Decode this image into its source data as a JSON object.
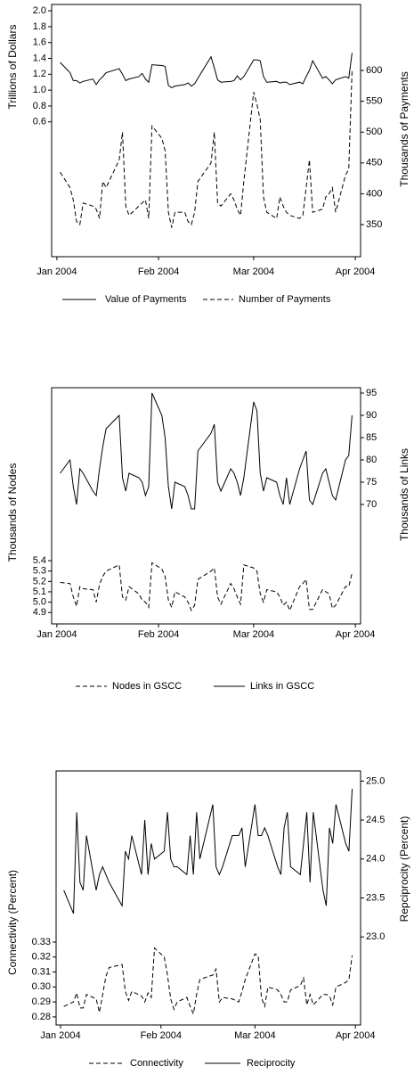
{
  "chart_data": [
    {
      "type": "line",
      "y_label": "Trillions of Dollars",
      "y2_label": "Thousands of Payments",
      "x": [
        2,
        5,
        6,
        7,
        8,
        9,
        12,
        13,
        14,
        15,
        16,
        20,
        21,
        22,
        23,
        26,
        27,
        28,
        29,
        30,
        33,
        34,
        35,
        36,
        37,
        40,
        41,
        42,
        43,
        44,
        48,
        49,
        50,
        51,
        54,
        55,
        56,
        57,
        58,
        61,
        62,
        63,
        64,
        65,
        68,
        69,
        70,
        71,
        72,
        75,
        76,
        77,
        78,
        79,
        82,
        83,
        84,
        85,
        86,
        89,
        90,
        91
      ],
      "xlim": [
        -0.6,
        93.6
      ],
      "xticks": [
        {
          "value": 1,
          "label": "Jan 2004"
        },
        {
          "value": 32,
          "label": "Feb 2004"
        },
        {
          "value": 61,
          "label": "Mar 2004"
        },
        {
          "value": 92,
          "label": "Apr 2004"
        }
      ],
      "ylim": [
        -1.1,
        2.08
      ],
      "yticks": [
        0.6,
        0.8,
        {
          "value": 1,
          "label": "1.0"
        },
        1.2,
        1.4,
        1.6,
        1.8,
        {
          "value": 2,
          "label": "2.0"
        }
      ],
      "y2lim": [
        298,
        707
      ],
      "y2ticks": [
        350,
        400,
        450,
        500,
        550,
        600
      ],
      "series": [
        {
          "name": "Value of Payments",
          "color": "#000000",
          "linestyle": "solid",
          "values": [
            1.35,
            1.22,
            1.12,
            1.12,
            1.09,
            1.11,
            1.14,
            1.07,
            1.13,
            1.17,
            1.22,
            1.27,
            1.2,
            1.12,
            1.14,
            1.17,
            1.21,
            1.14,
            1.1,
            1.32,
            1.31,
            1.3,
            1.06,
            1.03,
            1.05,
            1.07,
            1.09,
            1.05,
            1.08,
            1.15,
            1.42,
            1.28,
            1.13,
            1.1,
            1.11,
            1.12,
            1.18,
            1.13,
            1.17,
            1.38,
            1.38,
            1.37,
            1.17,
            1.1,
            1.11,
            1.09,
            1.1,
            1.1,
            1.07,
            1.1,
            1.08,
            1.17,
            1.25,
            1.37,
            1.15,
            1.17,
            1.13,
            1.08,
            1.13,
            1.17,
            1.15,
            1.47
          ]
        },
        {
          "name": "Number of Payments",
          "color": "#000000",
          "linestyle": "dashed",
          "axis": "y2",
          "values": [
            435,
            410,
            390,
            355,
            350,
            385,
            380,
            375,
            360,
            420,
            410,
            455,
            500,
            380,
            365,
            380,
            385,
            390,
            360,
            510,
            490,
            470,
            370,
            345,
            370,
            370,
            355,
            350,
            370,
            420,
            450,
            500,
            385,
            380,
            400,
            390,
            375,
            365,
            420,
            565,
            545,
            520,
            395,
            370,
            360,
            395,
            380,
            370,
            365,
            360,
            365,
            410,
            455,
            370,
            375,
            395,
            400,
            410,
            370,
            430,
            440,
            600
          ]
        }
      ]
    },
    {
      "type": "line",
      "y_label": "Thousands of Nodes",
      "y2_label": "Thousands of Links",
      "x": [
        2,
        5,
        6,
        7,
        8,
        9,
        12,
        13,
        14,
        15,
        16,
        20,
        21,
        22,
        23,
        26,
        27,
        28,
        29,
        30,
        33,
        34,
        35,
        36,
        37,
        40,
        41,
        42,
        43,
        44,
        48,
        49,
        50,
        51,
        54,
        55,
        56,
        57,
        58,
        61,
        62,
        63,
        64,
        65,
        68,
        69,
        70,
        71,
        72,
        75,
        76,
        77,
        78,
        79,
        82,
        83,
        84,
        85,
        86,
        89,
        90,
        91
      ],
      "xlim": [
        -0.6,
        93.6
      ],
      "xticks": [
        {
          "value": 1,
          "label": "Jan 2004"
        },
        {
          "value": 32,
          "label": "Feb 2004"
        },
        {
          "value": 61,
          "label": "Mar 2004"
        },
        {
          "value": 92,
          "label": "Apr 2004"
        }
      ],
      "ylim": [
        4.79,
        7.07
      ],
      "yticks": [
        4.9,
        {
          "value": 5,
          "label": "5.0"
        },
        5.1,
        5.2,
        5.3,
        5.4
      ],
      "y2lim": [
        43.2,
        96.2
      ],
      "y2ticks": [
        70,
        75,
        80,
        85,
        90,
        95
      ],
      "series": [
        {
          "name": "Nodes in GSCC",
          "color": "#000000",
          "linestyle": "dashed",
          "values": [
            5.19,
            5.18,
            5.05,
            4.96,
            5.15,
            5.13,
            5.12,
            5.0,
            5.17,
            5.25,
            5.3,
            5.36,
            5.05,
            5.02,
            5.15,
            5.08,
            5.02,
            5.0,
            4.95,
            5.38,
            5.32,
            5.25,
            5.02,
            4.95,
            5.1,
            5.05,
            5.0,
            4.92,
            4.97,
            5.22,
            5.3,
            5.33,
            5.05,
            4.98,
            5.18,
            5.13,
            5.05,
            4.98,
            5.36,
            5.33,
            5.3,
            5.08,
            5.0,
            5.12,
            5.1,
            5.05,
            4.97,
            5.0,
            4.92,
            5.15,
            5.18,
            5.22,
            4.93,
            4.93,
            5.12,
            5.1,
            5.08,
            4.94,
            4.97,
            5.15,
            5.15,
            5.28
          ]
        },
        {
          "name": "Links in GSCC",
          "color": "#000000",
          "linestyle": "solid",
          "axis": "y2",
          "values": [
            77,
            80,
            74,
            70,
            78,
            77,
            73,
            72,
            78,
            83,
            87,
            90,
            76,
            73,
            77,
            76,
            75,
            72,
            74,
            95,
            90,
            85,
            74,
            69,
            75,
            74,
            72,
            69,
            69,
            82,
            86,
            88,
            75,
            73,
            78,
            77,
            75,
            72,
            76,
            93,
            91,
            77,
            73,
            76,
            75,
            72,
            70,
            76,
            70,
            78,
            80,
            82,
            71,
            70,
            77,
            78,
            75,
            72,
            71,
            80,
            81,
            90
          ]
        }
      ]
    },
    {
      "type": "line",
      "y_label": "Connectivity (Percent)",
      "y2_label": "Repciprocity (Percent)",
      "x": [
        2,
        5,
        6,
        7,
        8,
        9,
        12,
        13,
        14,
        15,
        16,
        20,
        21,
        22,
        23,
        26,
        27,
        28,
        29,
        30,
        33,
        34,
        35,
        36,
        37,
        40,
        41,
        42,
        43,
        44,
        48,
        49,
        50,
        51,
        54,
        55,
        56,
        57,
        58,
        61,
        62,
        63,
        64,
        65,
        68,
        69,
        70,
        71,
        72,
        75,
        76,
        77,
        78,
        79,
        82,
        83,
        84,
        85,
        86,
        89,
        90,
        91
      ],
      "xlim": [
        -0.37,
        93.6
      ],
      "xticks": [
        {
          "value": 1,
          "label": "Jan 2004"
        },
        {
          "value": 32,
          "label": "Feb 2004"
        },
        {
          "value": 61,
          "label": "Mar 2004"
        },
        {
          "value": 92,
          "label": "Apr 2004"
        }
      ],
      "ylim": [
        0.2746,
        0.4443
      ],
      "yticks": [
        0.28,
        0.29,
        {
          "value": 0.3,
          "label": "0.30"
        },
        0.31,
        0.32,
        0.33
      ],
      "y2lim": [
        21.87,
        25.13
      ],
      "y2ticks": [
        {
          "value": 23,
          "label": "23.0"
        },
        23.5,
        {
          "value": 24,
          "label": "24.0"
        },
        24.5,
        {
          "value": 25,
          "label": "25.0"
        }
      ],
      "series": [
        {
          "name": "Connectivity",
          "color": "#000000",
          "linestyle": "dashed",
          "values": [
            0.287,
            0.29,
            0.296,
            0.286,
            0.286,
            0.295,
            0.292,
            0.283,
            0.295,
            0.307,
            0.313,
            0.315,
            0.297,
            0.291,
            0.297,
            0.294,
            0.29,
            0.296,
            0.293,
            0.326,
            0.32,
            0.308,
            0.292,
            0.285,
            0.29,
            0.293,
            0.287,
            0.282,
            0.295,
            0.305,
            0.308,
            0.312,
            0.29,
            0.293,
            0.292,
            0.291,
            0.29,
            0.297,
            0.305,
            0.322,
            0.321,
            0.293,
            0.287,
            0.3,
            0.298,
            0.295,
            0.29,
            0.29,
            0.298,
            0.301,
            0.306,
            0.288,
            0.295,
            0.288,
            0.295,
            0.295,
            0.294,
            0.288,
            0.3,
            0.303,
            0.305,
            0.321
          ]
        },
        {
          "name": "Reciprocity",
          "color": "#000000",
          "linestyle": "solid",
          "axis": "y2",
          "values": [
            23.6,
            23.3,
            24.6,
            23.7,
            23.6,
            24.3,
            23.6,
            23.8,
            23.9,
            23.8,
            23.7,
            23.4,
            24.1,
            24.0,
            24.3,
            23.8,
            24.5,
            23.8,
            24.2,
            24.0,
            24.1,
            24.6,
            24.0,
            23.9,
            23.9,
            23.8,
            24.3,
            23.8,
            24.6,
            24.0,
            24.7,
            23.9,
            23.8,
            23.9,
            24.3,
            24.3,
            24.3,
            24.4,
            23.9,
            24.7,
            24.3,
            24.3,
            24.4,
            24.3,
            23.9,
            23.8,
            24.4,
            24.6,
            23.9,
            23.8,
            24.2,
            24.6,
            23.7,
            24.6,
            23.6,
            23.4,
            24.4,
            24.2,
            24.7,
            24.2,
            24.1,
            24.9
          ]
        }
      ]
    }
  ]
}
